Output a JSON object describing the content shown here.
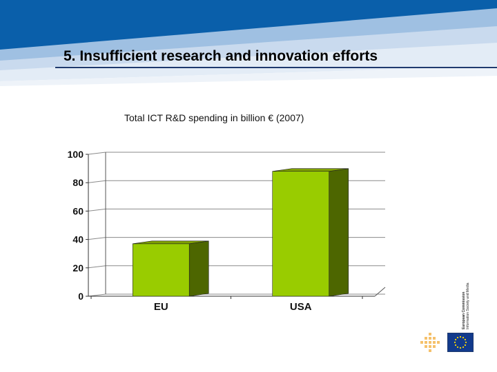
{
  "slide": {
    "title": "5. Insufficient research and innovation efforts",
    "branding": {
      "line1": "European Commission",
      "line2": "Information Society and Media"
    }
  },
  "colors": {
    "bar_front": "#99cc00",
    "bar_side": "#4d6600",
    "bar_top": "#7fa000",
    "header_blue": "#0a5faa",
    "header_light": "#c9daee"
  },
  "chart_data": {
    "type": "bar",
    "title": "Total ICT R&D spending in billion € (2007)",
    "categories": [
      "EU",
      "USA"
    ],
    "values": [
      37,
      88
    ],
    "yticks": [
      "0",
      "20",
      "40",
      "60",
      "80",
      "100"
    ],
    "ylim": [
      0,
      100
    ],
    "xlabel": "",
    "ylabel": "",
    "grid": true,
    "style": "3d"
  }
}
